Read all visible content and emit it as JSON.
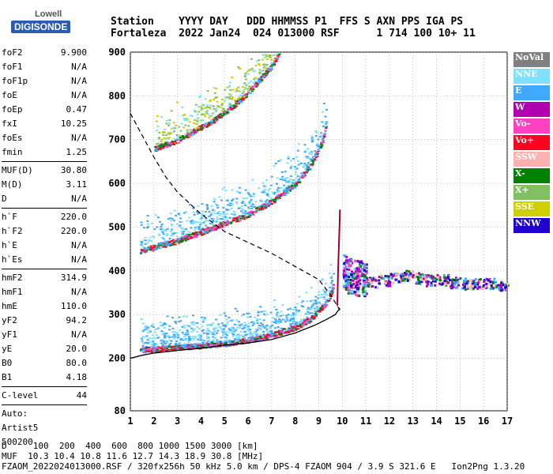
{
  "logo": {
    "line1": "Lowell",
    "line2": "DIGISONDE"
  },
  "header": {
    "line1": "Station    YYYY DAY   DDD HHMMSS P1  FFS S AXN PPS IGA PS",
    "line2": "Fortaleza  2022 Jan24  024 013000 RSF      1 714 100 10+ 11"
  },
  "params": [
    [
      [
        "foF2",
        "9.900"
      ],
      [
        "foF1",
        "N/A"
      ],
      [
        "foF1p",
        "N/A"
      ],
      [
        "foE",
        "N/A"
      ],
      [
        "foEp",
        "0.47"
      ],
      [
        "fxI",
        "10.25"
      ],
      [
        "foEs",
        "N/A"
      ],
      [
        "fmin",
        "1.25"
      ]
    ],
    [
      [
        "MUF(D)",
        "30.80"
      ],
      [
        "M(D)",
        "3.11"
      ],
      [
        "D",
        "N/A"
      ]
    ],
    [
      [
        "h`F",
        "220.0"
      ],
      [
        "h`F2",
        "220.0"
      ],
      [
        "h`E",
        "N/A"
      ],
      [
        "h`Es",
        "N/A"
      ]
    ],
    [
      [
        "hmF2",
        "314.9"
      ],
      [
        "hmF1",
        "N/A"
      ],
      [
        "hmE",
        "110.0"
      ],
      [
        "yF2",
        "94.2"
      ],
      [
        "yF1",
        "N/A"
      ],
      [
        "yE",
        "20.0"
      ],
      [
        "B0",
        "80.0"
      ],
      [
        "B1",
        "4.18"
      ]
    ],
    [
      [
        "C-level",
        "44"
      ]
    ],
    [
      [
        "Auto:",
        ""
      ],
      [
        "Artist5",
        ""
      ],
      [
        "500200",
        ""
      ]
    ]
  ],
  "legend": [
    {
      "label": "NoVal",
      "color": "#808080"
    },
    {
      "label": "NNE",
      "color": "#80e0ff"
    },
    {
      "label": "E",
      "color": "#40a8ff"
    },
    {
      "label": "W",
      "color": "#b000b0"
    },
    {
      "label": "Vo-",
      "color": "#ff40c0"
    },
    {
      "label": "Vo+",
      "color": "#ff0020"
    },
    {
      "label": "SSW",
      "color": "#ffb0b0"
    },
    {
      "label": "X-",
      "color": "#008000"
    },
    {
      "label": "X+",
      "color": "#80c060"
    },
    {
      "label": "SSE",
      "color": "#d0d000"
    },
    {
      "label": "NNW",
      "color": "#2000d0"
    }
  ],
  "footer": {
    "line1": "D     100  200  400  600  800 1000 1500 3000 [km]",
    "line2": "MUF  10.3 10.4 10.8 11.6 12.7 14.3 18.9 30.8 [MHz]",
    "line3": "FZAOM_2022024013000.RSF / 320fx256h 50 kHz 5.0 km / DPS-4 FZAOM 904 / 3.9 S 321.6 E   Ion2Png 1.3.20"
  },
  "chart_data": {
    "type": "scatter",
    "xlim": [
      1,
      17
    ],
    "ylim": [
      80,
      900
    ],
    "x_ticks": [
      1,
      2,
      3,
      4,
      5,
      6,
      7,
      8,
      9,
      10,
      11,
      12,
      13,
      14,
      15,
      16,
      17
    ],
    "y_ticks": [
      80,
      200,
      300,
      400,
      500,
      600,
      700,
      800,
      900
    ],
    "grid": true,
    "profile_solid": {
      "x": [
        1.0,
        1.5,
        2.0,
        3.0,
        4.0,
        5.0,
        6.0,
        7.0,
        8.0,
        8.8,
        9.3,
        9.7,
        9.9
      ],
      "y": [
        200,
        207,
        212,
        218,
        223,
        230,
        235,
        243,
        258,
        275,
        288,
        300,
        315
      ]
    },
    "profile_dashed": {
      "x": [
        1.0,
        1.5,
        2.0,
        2.5,
        3.0,
        3.5,
        4.0,
        4.5,
        5.0,
        6.0,
        7.0,
        8.0,
        9.0,
        9.5,
        9.9
      ],
      "y": [
        760,
        710,
        660,
        615,
        580,
        555,
        530,
        510,
        490,
        465,
        440,
        410,
        380,
        345,
        310
      ]
    },
    "trace_o_f2": {
      "x": [
        9.79,
        9.8,
        9.82,
        9.85,
        9.88,
        9.9
      ],
      "y": [
        320,
        350,
        400,
        450,
        500,
        540
      ]
    },
    "traces": [
      {
        "x": [
          1.4,
          2,
          3,
          4,
          5,
          6,
          7,
          8,
          8.6,
          9,
          9.3,
          9.5,
          9.6
        ],
        "y": [
          220,
          222,
          226,
          230,
          235,
          243,
          255,
          272,
          290,
          310,
          330,
          350,
          370
        ]
      },
      {
        "x": [
          1.4,
          2,
          3,
          4,
          5,
          6,
          7,
          8,
          8.6,
          9,
          9.2,
          9.3
        ],
        "y": [
          447,
          455,
          470,
          490,
          510,
          530,
          560,
          600,
          640,
          680,
          710,
          740
        ]
      },
      {
        "x": [
          2,
          2.5,
          3,
          3.5,
          4,
          4.5,
          5,
          5.5,
          6,
          6.5,
          7,
          7.3
        ],
        "y": [
          680,
          690,
          700,
          715,
          730,
          745,
          765,
          785,
          810,
          840,
          870,
          900
        ]
      }
    ],
    "scatter_x": [
      10.0,
      10.2,
      10.5,
      10.8,
      11.0,
      11.5,
      12.0,
      12.5,
      13.0,
      13.5,
      14.0,
      14.5,
      15.0,
      15.5,
      16.0,
      16.5,
      17.0
    ],
    "scatter_y": [
      400,
      390,
      385,
      380,
      375,
      380,
      385,
      390,
      385,
      380,
      380,
      375,
      372,
      372,
      372,
      370,
      368
    ]
  }
}
